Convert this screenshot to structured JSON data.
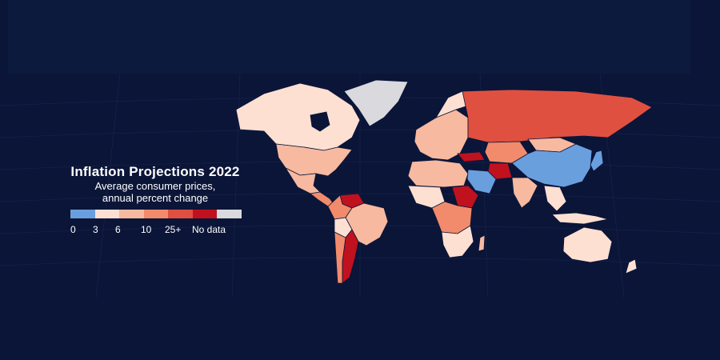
{
  "map": {
    "title": "Inflation Projections 2022",
    "subtitle_line1": "Average consumer prices,",
    "subtitle_line2": "annual percent change"
  },
  "legend": {
    "items": [
      {
        "label": "0",
        "color": "#6a9fde"
      },
      {
        "label": "3",
        "color": "#fde0d2"
      },
      {
        "label": "6",
        "color": "#f7b9a0"
      },
      {
        "label": "10",
        "color": "#f28b6b"
      },
      {
        "label": "25+",
        "color": "#e05040"
      },
      {
        "label": "",
        "color": "#c0111f"
      },
      {
        "label": "No data",
        "color": "#d9d9de"
      }
    ]
  },
  "colors": {
    "background": "#0b1538",
    "top_band": "#0c1a3e",
    "country_border": "#0b1538"
  }
}
